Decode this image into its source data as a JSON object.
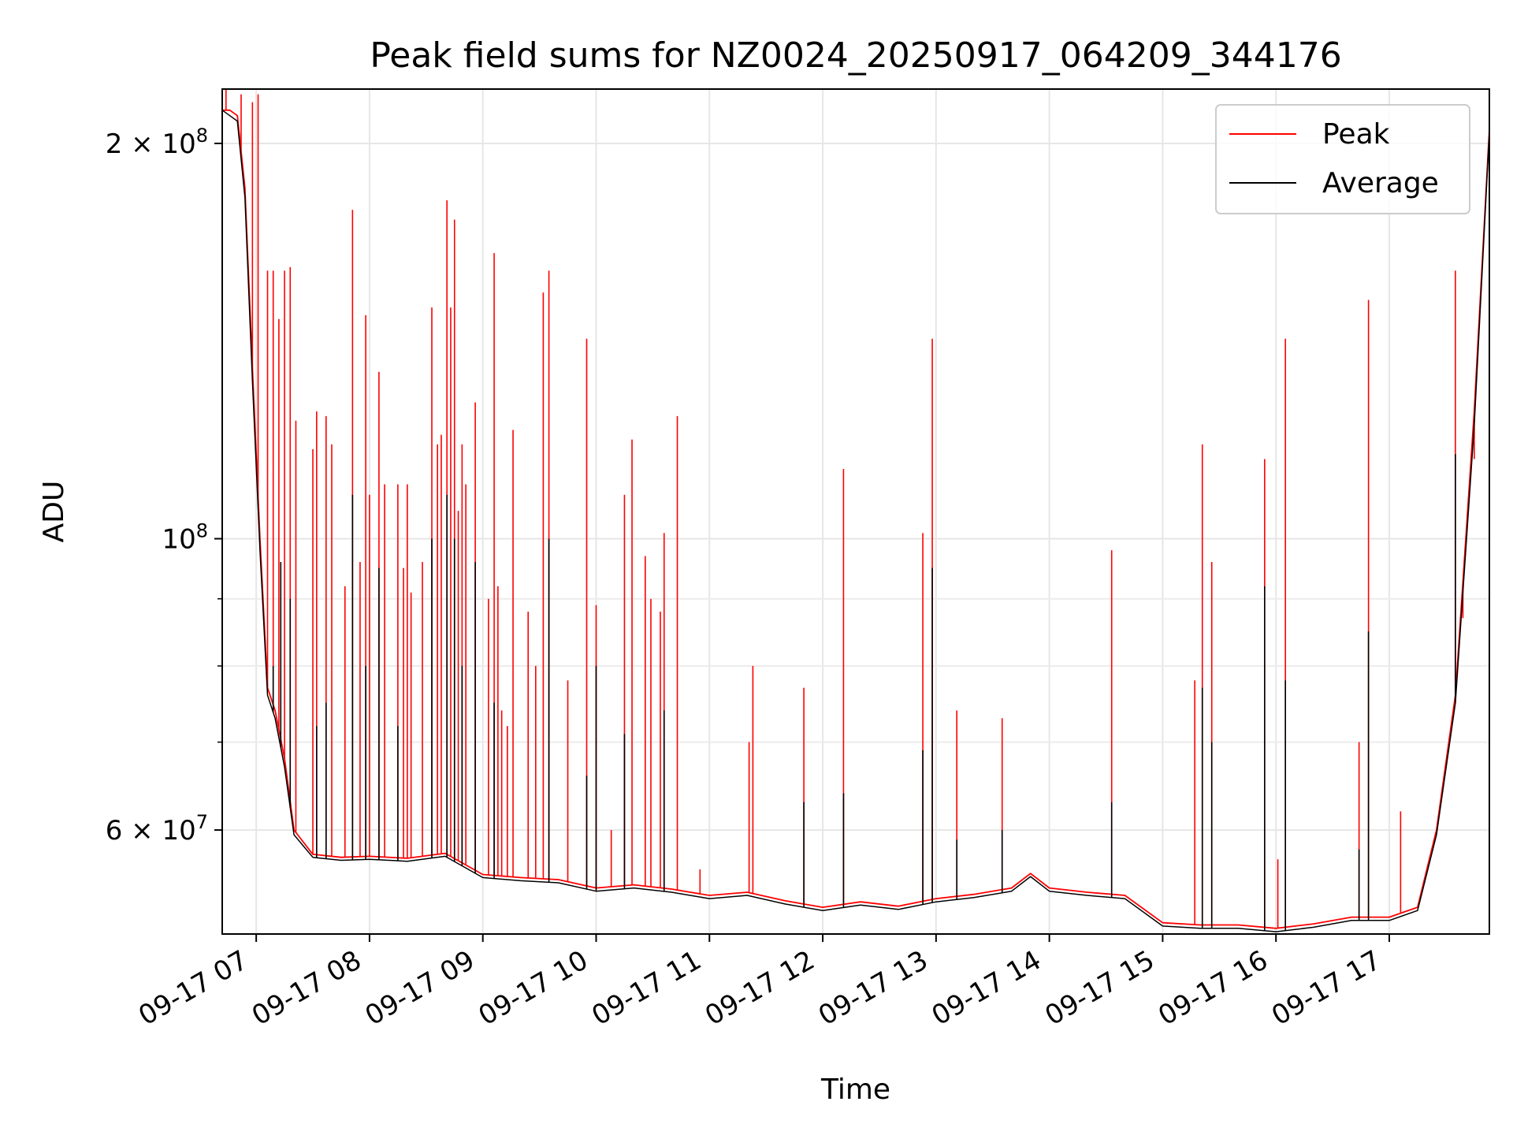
{
  "chart_data": {
    "type": "line",
    "title": "Peak field sums for NZ0024_20250917_064209_344176",
    "xlabel": "Time",
    "ylabel": "ADU",
    "y_scale": "log",
    "xlim": [
      "2025-09-17 06:42",
      "2025-09-17 17:53"
    ],
    "ylim": [
      50000000,
      220000000
    ],
    "grid": true,
    "legend_position": "top-right",
    "x_tick_labels": [
      "09-17 07",
      "09-17 08",
      "09-17 09",
      "09-17 10",
      "09-17 11",
      "09-17 12",
      "09-17 13",
      "09-17 14",
      "09-17 15",
      "09-17 16",
      "09-17 17"
    ],
    "x_ticks": [
      "2025-09-17 07:00",
      "2025-09-17 08:00",
      "2025-09-17 09:00",
      "2025-09-17 10:00",
      "2025-09-17 11:00",
      "2025-09-17 12:00",
      "2025-09-17 13:00",
      "2025-09-17 14:00",
      "2025-09-17 15:00",
      "2025-09-17 16:00",
      "2025-09-17 17:00"
    ],
    "y_major_ticks": [
      {
        "value": 60000000,
        "base": "6 × 10",
        "exp": "7"
      },
      {
        "value": 100000000,
        "base": "10",
        "exp": "8"
      },
      {
        "value": 200000000,
        "base": "2 × 10",
        "exp": "8"
      }
    ],
    "y_minor_ticks": [
      70000000,
      80000000,
      90000000
    ],
    "series": [
      {
        "name": "Peak",
        "color": "#ff0000",
        "x": [
          "2025-09-17 06:42",
          "2025-09-17 06:46",
          "2025-09-17 06:50",
          "2025-09-17 06:54",
          "2025-09-17 06:58",
          "2025-09-17 07:02",
          "2025-09-17 07:06",
          "2025-09-17 07:10",
          "2025-09-17 07:15",
          "2025-09-17 07:20",
          "2025-09-17 07:30",
          "2025-09-17 07:45",
          "2025-09-17 08:00",
          "2025-09-17 08:20",
          "2025-09-17 08:40",
          "2025-09-17 09:00",
          "2025-09-17 09:20",
          "2025-09-17 09:40",
          "2025-09-17 10:00",
          "2025-09-17 10:20",
          "2025-09-17 10:40",
          "2025-09-17 11:00",
          "2025-09-17 11:20",
          "2025-09-17 11:40",
          "2025-09-17 12:00",
          "2025-09-17 12:20",
          "2025-09-17 12:40",
          "2025-09-17 13:00",
          "2025-09-17 13:20",
          "2025-09-17 13:40",
          "2025-09-17 13:50",
          "2025-09-17 14:00",
          "2025-09-17 14:20",
          "2025-09-17 14:40",
          "2025-09-17 15:00",
          "2025-09-17 15:20",
          "2025-09-17 15:40",
          "2025-09-17 16:00",
          "2025-09-17 16:20",
          "2025-09-17 16:40",
          "2025-09-17 17:00",
          "2025-09-17 17:15",
          "2025-09-17 17:25",
          "2025-09-17 17:35",
          "2025-09-17 17:45",
          "2025-09-17 17:53"
        ],
        "y": [
          212000000,
          212000000,
          210000000,
          185000000,
          135000000,
          100000000,
          77000000,
          74000000,
          68000000,
          60000000,
          57500000,
          57200000,
          57300000,
          57100000,
          57600000,
          55500000,
          55200000,
          55000000,
          54200000,
          54500000,
          54100000,
          53500000,
          53800000,
          53000000,
          52400000,
          52900000,
          52500000,
          53200000,
          53600000,
          54200000,
          55600000,
          54200000,
          53800000,
          53500000,
          51000000,
          50800000,
          50800000,
          50500000,
          50900000,
          51500000,
          51500000,
          52400000,
          60000000,
          76000000,
          125000000,
          205000000
        ],
        "spikes": [
          {
            "x": "2025-09-17 06:44",
            "y": 220000000
          },
          {
            "x": "2025-09-17 06:52",
            "y": 218000000
          },
          {
            "x": "2025-09-17 06:58",
            "y": 215000000
          },
          {
            "x": "2025-09-17 07:01",
            "y": 218000000
          },
          {
            "x": "2025-09-17 07:06",
            "y": 160000000
          },
          {
            "x": "2025-09-17 07:09",
            "y": 160000000
          },
          {
            "x": "2025-09-17 07:12",
            "y": 147000000
          },
          {
            "x": "2025-09-17 07:15",
            "y": 160000000
          },
          {
            "x": "2025-09-17 07:18",
            "y": 161000000
          },
          {
            "x": "2025-09-17 07:21",
            "y": 123000000
          },
          {
            "x": "2025-09-17 07:30",
            "y": 117000000
          },
          {
            "x": "2025-09-17 07:32",
            "y": 125000000
          },
          {
            "x": "2025-09-17 07:37",
            "y": 124000000
          },
          {
            "x": "2025-09-17 07:40",
            "y": 118000000
          },
          {
            "x": "2025-09-17 07:47",
            "y": 92000000
          },
          {
            "x": "2025-09-17 07:51",
            "y": 178000000
          },
          {
            "x": "2025-09-17 07:55",
            "y": 96000000
          },
          {
            "x": "2025-09-17 07:58",
            "y": 148000000
          },
          {
            "x": "2025-09-17 08:00",
            "y": 108000000
          },
          {
            "x": "2025-09-17 08:05",
            "y": 134000000
          },
          {
            "x": "2025-09-17 08:08",
            "y": 110000000
          },
          {
            "x": "2025-09-17 08:15",
            "y": 110000000
          },
          {
            "x": "2025-09-17 08:18",
            "y": 95000000
          },
          {
            "x": "2025-09-17 08:20",
            "y": 110000000
          },
          {
            "x": "2025-09-17 08:22",
            "y": 91000000
          },
          {
            "x": "2025-09-17 08:28",
            "y": 96000000
          },
          {
            "x": "2025-09-17 08:33",
            "y": 150000000
          },
          {
            "x": "2025-09-17 08:36",
            "y": 118000000
          },
          {
            "x": "2025-09-17 08:38",
            "y": 120000000
          },
          {
            "x": "2025-09-17 08:41",
            "y": 181000000
          },
          {
            "x": "2025-09-17 08:43",
            "y": 150000000
          },
          {
            "x": "2025-09-17 08:45",
            "y": 175000000
          },
          {
            "x": "2025-09-17 08:47",
            "y": 105000000
          },
          {
            "x": "2025-09-17 08:49",
            "y": 118000000
          },
          {
            "x": "2025-09-17 08:51",
            "y": 110000000
          },
          {
            "x": "2025-09-17 08:56",
            "y": 127000000
          },
          {
            "x": "2025-09-17 09:03",
            "y": 90000000
          },
          {
            "x": "2025-09-17 09:06",
            "y": 165000000
          },
          {
            "x": "2025-09-17 09:08",
            "y": 92000000
          },
          {
            "x": "2025-09-17 09:10",
            "y": 74000000
          },
          {
            "x": "2025-09-17 09:13",
            "y": 72000000
          },
          {
            "x": "2025-09-17 09:16",
            "y": 121000000
          },
          {
            "x": "2025-09-17 09:24",
            "y": 88000000
          },
          {
            "x": "2025-09-17 09:28",
            "y": 80000000
          },
          {
            "x": "2025-09-17 09:32",
            "y": 154000000
          },
          {
            "x": "2025-09-17 09:35",
            "y": 160000000
          },
          {
            "x": "2025-09-17 09:45",
            "y": 78000000
          },
          {
            "x": "2025-09-17 09:55",
            "y": 142000000
          },
          {
            "x": "2025-09-17 10:00",
            "y": 89000000
          },
          {
            "x": "2025-09-17 10:08",
            "y": 60000000
          },
          {
            "x": "2025-09-17 10:15",
            "y": 108000000
          },
          {
            "x": "2025-09-17 10:19",
            "y": 119000000
          },
          {
            "x": "2025-09-17 10:26",
            "y": 97000000
          },
          {
            "x": "2025-09-17 10:29",
            "y": 90000000
          },
          {
            "x": "2025-09-17 10:34",
            "y": 88000000
          },
          {
            "x": "2025-09-17 10:36",
            "y": 101000000
          },
          {
            "x": "2025-09-17 10:43",
            "y": 124000000
          },
          {
            "x": "2025-09-17 10:55",
            "y": 56000000
          },
          {
            "x": "2025-09-17 11:21",
            "y": 70000000
          },
          {
            "x": "2025-09-17 11:23",
            "y": 80000000
          },
          {
            "x": "2025-09-17 11:50",
            "y": 77000000
          },
          {
            "x": "2025-09-17 12:11",
            "y": 113000000
          },
          {
            "x": "2025-09-17 12:53",
            "y": 101000000
          },
          {
            "x": "2025-09-17 12:58",
            "y": 142000000
          },
          {
            "x": "2025-09-17 13:11",
            "y": 74000000
          },
          {
            "x": "2025-09-17 13:35",
            "y": 73000000
          },
          {
            "x": "2025-09-17 14:33",
            "y": 98000000
          },
          {
            "x": "2025-09-17 15:17",
            "y": 78000000
          },
          {
            "x": "2025-09-17 15:21",
            "y": 118000000
          },
          {
            "x": "2025-09-17 15:26",
            "y": 96000000
          },
          {
            "x": "2025-09-17 15:54",
            "y": 115000000
          },
          {
            "x": "2025-09-17 16:01",
            "y": 57000000
          },
          {
            "x": "2025-09-17 16:05",
            "y": 142000000
          },
          {
            "x": "2025-09-17 16:44",
            "y": 70000000
          },
          {
            "x": "2025-09-17 16:49",
            "y": 152000000
          },
          {
            "x": "2025-09-17 17:06",
            "y": 62000000
          },
          {
            "x": "2025-09-17 17:35",
            "y": 160000000
          },
          {
            "x": "2025-09-17 17:39",
            "y": 87000000
          },
          {
            "x": "2025-09-17 17:45",
            "y": 115000000
          }
        ]
      },
      {
        "name": "Average",
        "color": "#000000",
        "x": [
          "2025-09-17 06:42",
          "2025-09-17 06:46",
          "2025-09-17 06:50",
          "2025-09-17 06:54",
          "2025-09-17 06:58",
          "2025-09-17 07:02",
          "2025-09-17 07:06",
          "2025-09-17 07:10",
          "2025-09-17 07:15",
          "2025-09-17 07:20",
          "2025-09-17 07:30",
          "2025-09-17 07:45",
          "2025-09-17 08:00",
          "2025-09-17 08:20",
          "2025-09-17 08:40",
          "2025-09-17 09:00",
          "2025-09-17 09:20",
          "2025-09-17 09:40",
          "2025-09-17 10:00",
          "2025-09-17 10:20",
          "2025-09-17 10:40",
          "2025-09-17 11:00",
          "2025-09-17 11:20",
          "2025-09-17 11:40",
          "2025-09-17 12:00",
          "2025-09-17 12:20",
          "2025-09-17 12:40",
          "2025-09-17 13:00",
          "2025-09-17 13:20",
          "2025-09-17 13:40",
          "2025-09-17 13:50",
          "2025-09-17 14:00",
          "2025-09-17 14:20",
          "2025-09-17 14:40",
          "2025-09-17 15:00",
          "2025-09-17 15:20",
          "2025-09-17 15:40",
          "2025-09-17 16:00",
          "2025-09-17 16:20",
          "2025-09-17 16:40",
          "2025-09-17 17:00",
          "2025-09-17 17:15",
          "2025-09-17 17:25",
          "2025-09-17 17:35",
          "2025-09-17 17:45",
          "2025-09-17 17:53"
        ],
        "y": [
          212000000,
          210000000,
          208000000,
          182000000,
          132000000,
          98000000,
          76000000,
          73000000,
          67000000,
          59500000,
          57200000,
          56900000,
          57000000,
          56800000,
          57300000,
          55200000,
          54900000,
          54700000,
          53900000,
          54200000,
          53800000,
          53200000,
          53500000,
          52700000,
          52100000,
          52600000,
          52200000,
          52900000,
          53300000,
          53900000,
          55300000,
          53900000,
          53500000,
          53200000,
          50700000,
          50500000,
          50500000,
          50200000,
          50600000,
          51200000,
          51200000,
          52100000,
          59500000,
          75000000,
          122000000,
          204000000
        ],
        "spikes": [
          {
            "x": "2025-09-17 07:09",
            "y": 80000000
          },
          {
            "x": "2025-09-17 07:13",
            "y": 96000000
          },
          {
            "x": "2025-09-17 07:18",
            "y": 90000000
          },
          {
            "x": "2025-09-17 07:32",
            "y": 72000000
          },
          {
            "x": "2025-09-17 07:37",
            "y": 75000000
          },
          {
            "x": "2025-09-17 07:51",
            "y": 108000000
          },
          {
            "x": "2025-09-17 07:58",
            "y": 80000000
          },
          {
            "x": "2025-09-17 08:05",
            "y": 95000000
          },
          {
            "x": "2025-09-17 08:15",
            "y": 72000000
          },
          {
            "x": "2025-09-17 08:33",
            "y": 100000000
          },
          {
            "x": "2025-09-17 08:41",
            "y": 108000000
          },
          {
            "x": "2025-09-17 08:45",
            "y": 100000000
          },
          {
            "x": "2025-09-17 08:49",
            "y": 80000000
          },
          {
            "x": "2025-09-17 08:56",
            "y": 96000000
          },
          {
            "x": "2025-09-17 09:06",
            "y": 75000000
          },
          {
            "x": "2025-09-17 09:35",
            "y": 100000000
          },
          {
            "x": "2025-09-17 09:55",
            "y": 66000000
          },
          {
            "x": "2025-09-17 10:00",
            "y": 80000000
          },
          {
            "x": "2025-09-17 10:15",
            "y": 71000000
          },
          {
            "x": "2025-09-17 10:36",
            "y": 74000000
          },
          {
            "x": "2025-09-17 11:50",
            "y": 63000000
          },
          {
            "x": "2025-09-17 12:11",
            "y": 64000000
          },
          {
            "x": "2025-09-17 12:53",
            "y": 69000000
          },
          {
            "x": "2025-09-17 12:58",
            "y": 95000000
          },
          {
            "x": "2025-09-17 13:11",
            "y": 59000000
          },
          {
            "x": "2025-09-17 13:35",
            "y": 60000000
          },
          {
            "x": "2025-09-17 14:33",
            "y": 63000000
          },
          {
            "x": "2025-09-17 15:21",
            "y": 77000000
          },
          {
            "x": "2025-09-17 15:26",
            "y": 70000000
          },
          {
            "x": "2025-09-17 15:54",
            "y": 92000000
          },
          {
            "x": "2025-09-17 16:05",
            "y": 78000000
          },
          {
            "x": "2025-09-17 16:44",
            "y": 58000000
          },
          {
            "x": "2025-09-17 16:49",
            "y": 85000000
          },
          {
            "x": "2025-09-17 17:35",
            "y": 116000000
          }
        ]
      }
    ]
  }
}
